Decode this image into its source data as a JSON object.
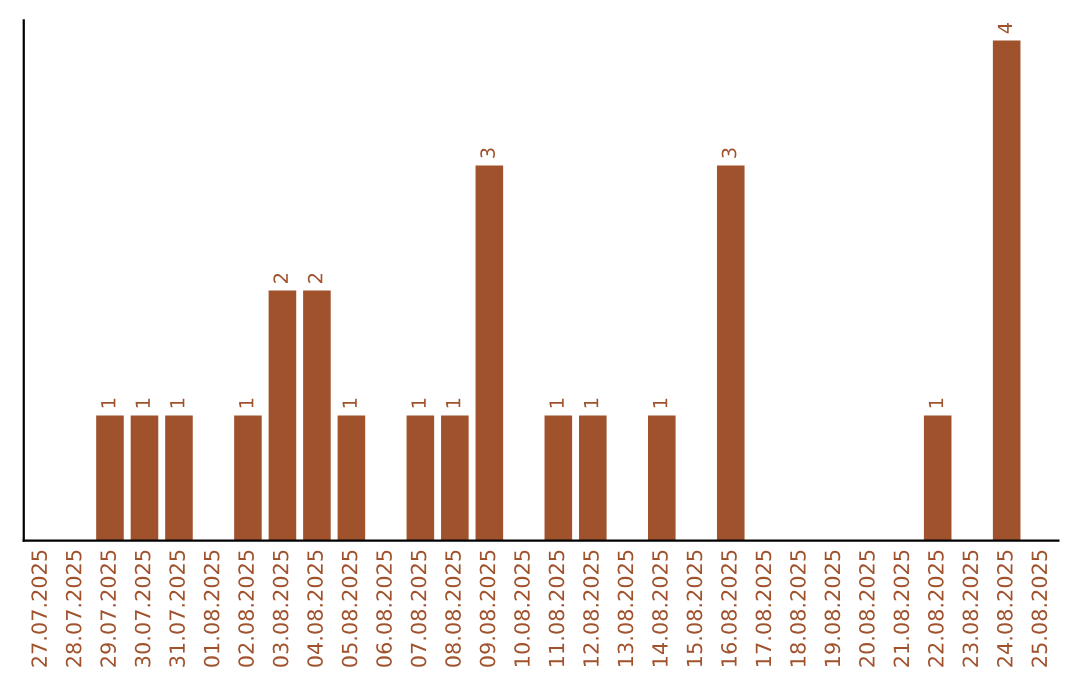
{
  "chart_data": {
    "type": "bar",
    "categories": [
      "27.07.2025",
      "28.07.2025",
      "29.07.2025",
      "30.07.2025",
      "31.07.2025",
      "01.08.2025",
      "02.08.2025",
      "03.08.2025",
      "04.08.2025",
      "05.08.2025",
      "06.08.2025",
      "07.08.2025",
      "08.08.2025",
      "09.08.2025",
      "10.08.2025",
      "11.08.2025",
      "12.08.2025",
      "13.08.2025",
      "14.08.2025",
      "15.08.2025",
      "16.08.2025",
      "17.08.2025",
      "18.08.2025",
      "19.08.2025",
      "20.08.2025",
      "21.08.2025",
      "22.08.2025",
      "23.08.2025",
      "24.08.2025",
      "25.08.2025"
    ],
    "values": [
      0,
      0,
      1,
      1,
      1,
      0,
      1,
      2,
      2,
      1,
      0,
      1,
      1,
      3,
      0,
      1,
      1,
      0,
      1,
      0,
      3,
      0,
      0,
      0,
      0,
      0,
      1,
      0,
      4,
      0
    ],
    "color": "#a0522d",
    "value_labels": [
      null,
      null,
      "1",
      "1",
      "1",
      null,
      "1",
      "2",
      "2",
      "1",
      null,
      "1",
      "1",
      "3",
      null,
      "1",
      "1",
      null,
      "1",
      null,
      "3",
      null,
      null,
      null,
      null,
      null,
      "1",
      null,
      "4",
      null
    ],
    "grid": false,
    "legend": false
  }
}
